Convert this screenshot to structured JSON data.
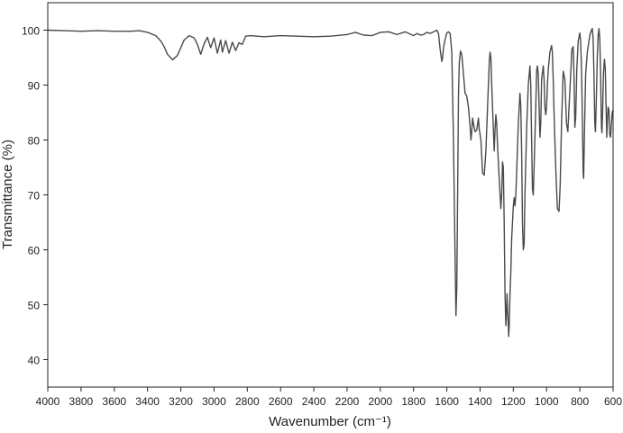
{
  "chart_data": {
    "type": "line",
    "xlabel": "Wavenumber (cm⁻¹)",
    "ylabel": "Transmittance (%)",
    "xlim": [
      4000,
      600
    ],
    "ylim": [
      35,
      105
    ],
    "x_reversed": true,
    "grid": false,
    "x_ticks": [
      "4000",
      "3800",
      "3600",
      "3400",
      "3200",
      "3000",
      "2800",
      "2600",
      "2400",
      "2200",
      "2000",
      "1800",
      "1600",
      "1400",
      "1200",
      "1000",
      "800",
      "600"
    ],
    "y_ticks": [
      "40",
      "50",
      "60",
      "70",
      "80",
      "90",
      "100"
    ],
    "colors": {
      "line": "#4a4a4a",
      "axis": "#222222"
    },
    "series": [
      {
        "points": [
          [
            4000,
            100
          ],
          [
            3900,
            99.9
          ],
          [
            3800,
            99.8
          ],
          [
            3700,
            99.9
          ],
          [
            3600,
            99.8
          ],
          [
            3500,
            99.8
          ],
          [
            3450,
            99.9
          ],
          [
            3400,
            99.6
          ],
          [
            3350,
            99
          ],
          [
            3320,
            98
          ],
          [
            3300,
            97
          ],
          [
            3280,
            95.6
          ],
          [
            3250,
            94.6
          ],
          [
            3220,
            95.4
          ],
          [
            3200,
            96.8
          ],
          [
            3180,
            98.2
          ],
          [
            3150,
            99
          ],
          [
            3120,
            98.6
          ],
          [
            3100,
            97.4
          ],
          [
            3080,
            95.6
          ],
          [
            3060,
            97.5
          ],
          [
            3040,
            98.7
          ],
          [
            3020,
            96.8
          ],
          [
            3000,
            98.6
          ],
          [
            2980,
            95.8
          ],
          [
            2960,
            98.2
          ],
          [
            2950,
            96
          ],
          [
            2930,
            98.1
          ],
          [
            2910,
            95.8
          ],
          [
            2890,
            97.8
          ],
          [
            2870,
            96.3
          ],
          [
            2850,
            97.7
          ],
          [
            2830,
            97.4
          ],
          [
            2810,
            98.9
          ],
          [
            2780,
            99
          ],
          [
            2700,
            98.8
          ],
          [
            2600,
            99
          ],
          [
            2500,
            98.9
          ],
          [
            2400,
            98.8
          ],
          [
            2300,
            98.9
          ],
          [
            2200,
            99.2
          ],
          [
            2150,
            99.6
          ],
          [
            2100,
            99.1
          ],
          [
            2050,
            99
          ],
          [
            2000,
            99.6
          ],
          [
            1950,
            99.7
          ],
          [
            1900,
            99.2
          ],
          [
            1850,
            99.7
          ],
          [
            1800,
            99
          ],
          [
            1780,
            99.4
          ],
          [
            1760,
            99.1
          ],
          [
            1740,
            99.2
          ],
          [
            1720,
            99.6
          ],
          [
            1700,
            99.4
          ],
          [
            1680,
            99.7
          ],
          [
            1660,
            100
          ],
          [
            1650,
            99.4
          ],
          [
            1640,
            96.5
          ],
          [
            1630,
            94.3
          ],
          [
            1625,
            95
          ],
          [
            1620,
            96.8
          ],
          [
            1610,
            98.3
          ],
          [
            1600,
            99.5
          ],
          [
            1590,
            99.7
          ],
          [
            1580,
            99.4
          ],
          [
            1570,
            96
          ],
          [
            1560,
            80
          ],
          [
            1550,
            58
          ],
          [
            1545,
            48
          ],
          [
            1540,
            53
          ],
          [
            1535,
            70
          ],
          [
            1530,
            88
          ],
          [
            1525,
            94
          ],
          [
            1518,
            96.2
          ],
          [
            1510,
            95.6
          ],
          [
            1500,
            92
          ],
          [
            1490,
            88.5
          ],
          [
            1480,
            88
          ],
          [
            1470,
            86
          ],
          [
            1460,
            82.5
          ],
          [
            1455,
            80
          ],
          [
            1450,
            81.5
          ],
          [
            1445,
            84
          ],
          [
            1440,
            83
          ],
          [
            1430,
            81.5
          ],
          [
            1420,
            81.8
          ],
          [
            1410,
            84
          ],
          [
            1405,
            82
          ],
          [
            1395,
            80
          ],
          [
            1385,
            74
          ],
          [
            1375,
            73.6
          ],
          [
            1365,
            78
          ],
          [
            1355,
            86
          ],
          [
            1345,
            94
          ],
          [
            1340,
            96
          ],
          [
            1335,
            95
          ],
          [
            1330,
            90
          ],
          [
            1320,
            82
          ],
          [
            1315,
            78
          ],
          [
            1310,
            82
          ],
          [
            1305,
            84.6
          ],
          [
            1300,
            83
          ],
          [
            1295,
            79
          ],
          [
            1285,
            73
          ],
          [
            1275,
            67.5
          ],
          [
            1270,
            70
          ],
          [
            1265,
            76
          ],
          [
            1260,
            75
          ],
          [
            1255,
            65
          ],
          [
            1250,
            52
          ],
          [
            1245,
            46.2
          ],
          [
            1240,
            50
          ],
          [
            1238,
            52
          ],
          [
            1235,
            49
          ],
          [
            1230,
            46
          ],
          [
            1228,
            44.2
          ],
          [
            1225,
            46
          ],
          [
            1220,
            52
          ],
          [
            1215,
            56
          ],
          [
            1210,
            62
          ],
          [
            1205,
            65
          ],
          [
            1200,
            68
          ],
          [
            1195,
            69.5
          ],
          [
            1190,
            68
          ],
          [
            1185,
            70
          ],
          [
            1180,
            74
          ],
          [
            1170,
            83
          ],
          [
            1160,
            88.5
          ],
          [
            1155,
            86
          ],
          [
            1150,
            78
          ],
          [
            1145,
            65
          ],
          [
            1140,
            60
          ],
          [
            1135,
            61
          ],
          [
            1130,
            70
          ],
          [
            1120,
            82
          ],
          [
            1110,
            90
          ],
          [
            1100,
            93.5
          ],
          [
            1095,
            90
          ],
          [
            1090,
            80
          ],
          [
            1085,
            71
          ],
          [
            1080,
            70
          ],
          [
            1075,
            75
          ],
          [
            1065,
            86
          ],
          [
            1060,
            92.5
          ],
          [
            1055,
            93.5
          ],
          [
            1050,
            92
          ],
          [
            1045,
            86
          ],
          [
            1040,
            80.5
          ],
          [
            1035,
            83
          ],
          [
            1030,
            91
          ],
          [
            1020,
            93.5
          ],
          [
            1015,
            91
          ],
          [
            1010,
            86
          ],
          [
            1005,
            84.6
          ],
          [
            1000,
            86
          ],
          [
            995,
            90
          ],
          [
            990,
            92.8
          ],
          [
            980,
            96
          ],
          [
            970,
            97.2
          ],
          [
            965,
            96
          ],
          [
            960,
            91
          ],
          [
            955,
            85
          ],
          [
            945,
            75
          ],
          [
            935,
            67.5
          ],
          [
            925,
            67
          ],
          [
            918,
            72
          ],
          [
            910,
            83
          ],
          [
            900,
            92.5
          ],
          [
            890,
            91
          ],
          [
            880,
            83
          ],
          [
            872,
            81.5
          ],
          [
            865,
            86
          ],
          [
            855,
            92
          ],
          [
            848,
            96.5
          ],
          [
            840,
            97
          ],
          [
            835,
            92
          ],
          [
            830,
            82.3
          ],
          [
            825,
            84
          ],
          [
            818,
            93
          ],
          [
            810,
            98
          ],
          [
            800,
            99.5
          ],
          [
            795,
            98
          ],
          [
            790,
            93
          ],
          [
            785,
            85
          ],
          [
            780,
            74
          ],
          [
            777,
            73
          ],
          [
            773,
            80
          ],
          [
            765,
            92
          ],
          [
            755,
            96
          ],
          [
            745,
            98
          ],
          [
            738,
            99.3
          ],
          [
            730,
            100
          ],
          [
            725,
            100.3
          ],
          [
            720,
            98.5
          ],
          [
            715,
            92
          ],
          [
            710,
            83
          ],
          [
            706,
            81.5
          ],
          [
            702,
            86
          ],
          [
            695,
            95
          ],
          [
            690,
            99
          ],
          [
            685,
            100.3
          ],
          [
            680,
            98.5
          ],
          [
            675,
            92
          ],
          [
            670,
            82.5
          ],
          [
            667,
            81.3
          ],
          [
            663,
            85
          ],
          [
            658,
            92
          ],
          [
            652,
            94.7
          ],
          [
            647,
            93
          ],
          [
            642,
            86
          ],
          [
            638,
            80.5
          ],
          [
            635,
            83
          ],
          [
            630,
            86
          ],
          [
            625,
            85.5
          ],
          [
            620,
            81
          ],
          [
            615,
            80.5
          ],
          [
            610,
            83
          ],
          [
            605,
            85
          ],
          [
            600,
            85.5
          ]
        ]
      }
    ]
  }
}
